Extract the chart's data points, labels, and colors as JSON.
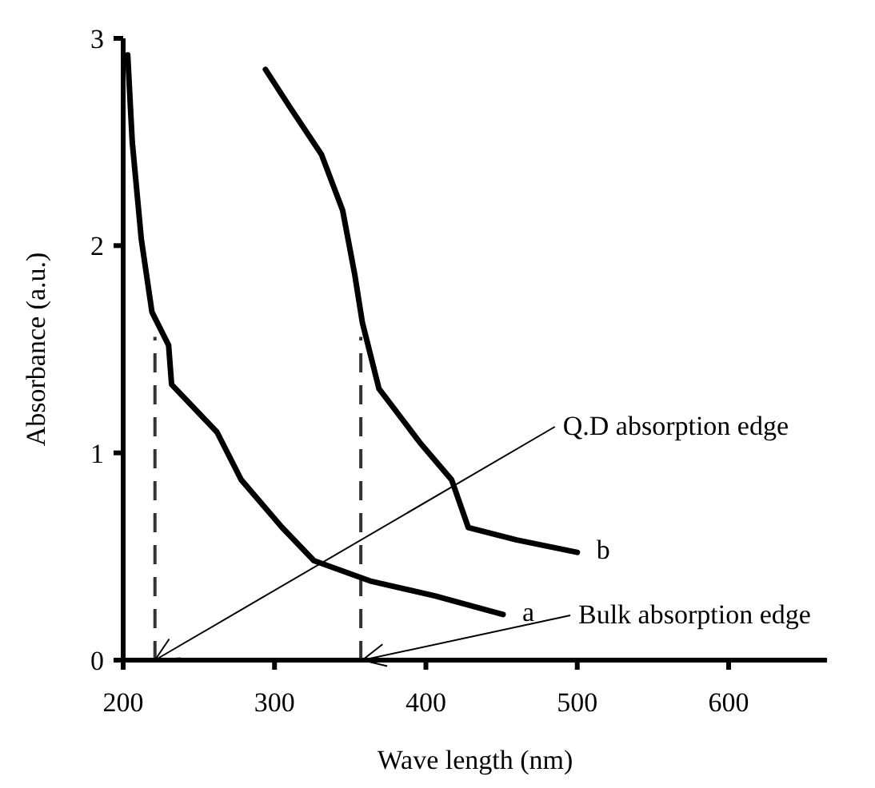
{
  "chart_data": {
    "type": "line",
    "xlabel": "Wave length (nm)",
    "ylabel": "Absorbance (a.u.)",
    "xlim": [
      200,
      665
    ],
    "ylim": [
      0,
      3
    ],
    "xticks": [
      200,
      300,
      400,
      500,
      600
    ],
    "yticks": [
      0,
      1,
      2,
      3
    ],
    "grid": false,
    "marker": "none",
    "line_style": "solid",
    "series": [
      {
        "name": "a",
        "color": "#000000",
        "x": [
          203,
          206,
          212,
          219,
          230,
          232,
          262,
          278,
          305,
          326,
          364,
          406,
          451
        ],
        "values": [
          2.92,
          2.5,
          2.03,
          1.68,
          1.52,
          1.33,
          1.1,
          0.87,
          0.64,
          0.48,
          0.38,
          0.31,
          0.22
        ]
      },
      {
        "name": "b",
        "color": "#000000",
        "x": [
          294,
          310,
          331,
          345,
          353,
          358,
          369,
          396,
          417,
          428,
          460,
          500
        ],
        "values": [
          2.85,
          2.67,
          2.44,
          2.17,
          1.86,
          1.63,
          1.31,
          1.05,
          0.87,
          0.64,
          0.58,
          0.52
        ]
      }
    ],
    "ref_lines": [
      {
        "axis": "x",
        "value": 221,
        "line_style": "dashed",
        "color": "#333333"
      },
      {
        "axis": "x",
        "value": 357,
        "line_style": "dashed",
        "color": "#333333"
      }
    ],
    "annotations": [
      {
        "text": "Q.D absorption edge",
        "x": 221,
        "y": 0
      },
      {
        "text": "Bulk absorption edge",
        "x": 358,
        "y": 0
      }
    ]
  }
}
